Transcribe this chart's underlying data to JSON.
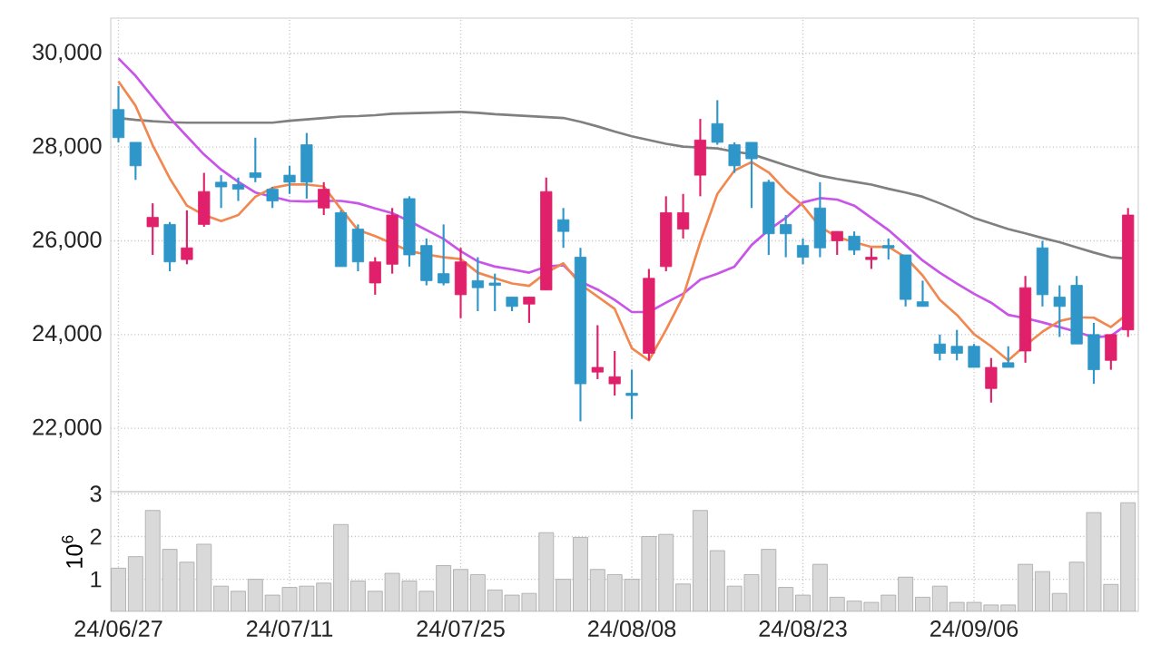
{
  "chart_data": [
    {
      "type": "candlestick",
      "categories": [
        null,
        null,
        null,
        null,
        null,
        null,
        null,
        null,
        null,
        null,
        null,
        null,
        null,
        null,
        null,
        null,
        null,
        null,
        null,
        null,
        null,
        null,
        null,
        null,
        null,
        null,
        null,
        null,
        null,
        null,
        null,
        null,
        null,
        null,
        null,
        null,
        null,
        null,
        null,
        null,
        null,
        null,
        null,
        null,
        null,
        null,
        null,
        null,
        null,
        null,
        null,
        null,
        null,
        null,
        null,
        null,
        null,
        null,
        null,
        null
      ],
      "ohlc": [
        [
          28800,
          29300,
          28100,
          28200
        ],
        [
          28100,
          28100,
          27300,
          27600
        ],
        [
          26300,
          26800,
          25700,
          26500
        ],
        [
          26350,
          26400,
          25350,
          25550
        ],
        [
          25600,
          26650,
          25500,
          25850
        ],
        [
          26350,
          27450,
          26300,
          27050
        ],
        [
          27250,
          27400,
          26700,
          27150
        ],
        [
          27200,
          27350,
          26850,
          27100
        ],
        [
          27450,
          28200,
          27250,
          27350
        ],
        [
          27100,
          27150,
          26700,
          26850
        ],
        [
          27400,
          27600,
          27000,
          27250
        ],
        [
          28050,
          28300,
          26900,
          27250
        ],
        [
          26700,
          27250,
          26550,
          27100
        ],
        [
          26600,
          26650,
          25450,
          25450
        ],
        [
          26250,
          26350,
          25350,
          25550
        ],
        [
          25100,
          25650,
          24850,
          25550
        ],
        [
          25500,
          26700,
          25300,
          26550
        ],
        [
          26900,
          26950,
          25450,
          25700
        ],
        [
          25900,
          26050,
          25050,
          25150
        ],
        [
          25300,
          26350,
          25050,
          25100
        ],
        [
          24850,
          25850,
          24350,
          25550
        ],
        [
          25150,
          25650,
          24500,
          25000
        ],
        [
          25100,
          25300,
          24500,
          25050
        ],
        [
          24800,
          24800,
          24500,
          24600
        ],
        [
          24650,
          24800,
          24250,
          24800
        ],
        [
          24950,
          27350,
          24950,
          27050
        ],
        [
          26450,
          26700,
          25850,
          26200
        ],
        [
          25650,
          25850,
          22150,
          22950
        ],
        [
          23200,
          24200,
          23050,
          23300
        ],
        [
          22950,
          23650,
          22700,
          23100
        ],
        [
          22750,
          23250,
          22200,
          22700
        ],
        [
          23600,
          25400,
          23450,
          25200
        ],
        [
          25450,
          26950,
          25350,
          26600
        ],
        [
          26250,
          27000,
          26050,
          26600
        ],
        [
          27400,
          28600,
          26950,
          28150
        ],
        [
          28500,
          29000,
          28050,
          28100
        ],
        [
          28050,
          28100,
          27450,
          27600
        ],
        [
          28100,
          28100,
          26700,
          27750
        ],
        [
          27250,
          27300,
          25700,
          26150
        ],
        [
          26350,
          26550,
          25650,
          26150
        ],
        [
          25900,
          26050,
          25500,
          25650
        ],
        [
          26700,
          27250,
          25650,
          25850
        ],
        [
          26000,
          26200,
          25700,
          26200
        ],
        [
          26100,
          26200,
          25700,
          25800
        ],
        [
          25600,
          25850,
          25400,
          25650
        ],
        [
          25900,
          26050,
          25600,
          25850
        ],
        [
          25700,
          25700,
          24600,
          24750
        ],
        [
          24700,
          25150,
          24600,
          24600
        ],
        [
          23800,
          24000,
          23450,
          23600
        ],
        [
          23750,
          24100,
          23450,
          23600
        ],
        [
          23750,
          23800,
          23300,
          23300
        ],
        [
          22850,
          23500,
          22550,
          23300
        ],
        [
          23400,
          23750,
          23300,
          23300
        ],
        [
          23650,
          25250,
          23400,
          25000
        ],
        [
          25850,
          26000,
          24600,
          24850
        ],
        [
          24800,
          25050,
          23950,
          24600
        ],
        [
          25050,
          25250,
          23800,
          23800
        ],
        [
          24000,
          24250,
          22950,
          23250
        ],
        [
          23450,
          24000,
          23250,
          24000
        ],
        [
          24100,
          26700,
          23950,
          26550
        ]
      ],
      "colors": [
        "#2e96c8",
        "#2e96c8",
        "#e0206a",
        "#2e96c8",
        "#e0206a",
        "#e0206a",
        "#2e96c8",
        "#2e96c8",
        "#2e96c8",
        "#2e96c8",
        "#2e96c8",
        "#2e96c8",
        "#e0206a",
        "#2e96c8",
        "#2e96c8",
        "#e0206a",
        "#e0206a",
        "#2e96c8",
        "#2e96c8",
        "#2e96c8",
        "#e0206a",
        "#2e96c8",
        "#2e96c8",
        "#2e96c8",
        "#e0206a",
        "#e0206a",
        "#2e96c8",
        "#2e96c8",
        "#e0206a",
        "#e0206a",
        "#2e96c8",
        "#e0206a",
        "#e0206a",
        "#e0206a",
        "#e0206a",
        "#2e96c8",
        "#2e96c8",
        "#2e96c8",
        "#2e96c8",
        "#2e96c8",
        "#2e96c8",
        "#2e96c8",
        "#e0206a",
        "#2e96c8",
        "#e0206a",
        "#2e96c8",
        "#2e96c8",
        "#2e96c8",
        "#2e96c8",
        "#2e96c8",
        "#2e96c8",
        "#e0206a",
        "#2e96c8",
        "#e0206a",
        "#2e96c8",
        "#2e96c8",
        "#2e96c8",
        "#2e96c8",
        "#e0206a",
        "#e0206a"
      ],
      "series": [
        {
          "type": "line",
          "color": "#808080",
          "values": [
            28620,
            28580,
            28550,
            28530,
            28520,
            28520,
            28520,
            28520,
            28520,
            28520,
            28560,
            28590,
            28620,
            28650,
            28660,
            28680,
            28710,
            28720,
            28730,
            28740,
            28750,
            28730,
            28700,
            28680,
            28660,
            28640,
            28620,
            28540,
            28440,
            28330,
            28230,
            28150,
            28070,
            28010,
            27990,
            27970,
            27900,
            27850,
            27730,
            27610,
            27500,
            27390,
            27320,
            27260,
            27200,
            27110,
            27030,
            26940,
            26800,
            26650,
            26490,
            26370,
            26250,
            26160,
            26060,
            25970,
            25860,
            25750,
            25650,
            25620
          ]
        },
        {
          "type": "line",
          "color": "#c855e8",
          "values": [
            29890,
            29520,
            29070,
            28620,
            28230,
            27840,
            27520,
            27260,
            27030,
            26940,
            26850,
            26840,
            26850,
            26850,
            26800,
            26690,
            26590,
            26420,
            26230,
            26040,
            25780,
            25560,
            25450,
            25390,
            25320,
            25450,
            25480,
            25130,
            24960,
            24740,
            24480,
            24480,
            24680,
            24870,
            25170,
            25300,
            25450,
            25910,
            26230,
            26490,
            26820,
            26910,
            26880,
            26750,
            26490,
            26230,
            25910,
            25580,
            25320,
            25090,
            24870,
            24680,
            24420,
            24350,
            24260,
            24160,
            24060,
            23940,
            23970,
            24230
          ]
        },
        {
          "type": "line",
          "color": "#f08850",
          "values": [
            29400,
            28880,
            28040,
            27330,
            26750,
            26550,
            26420,
            26550,
            26940,
            27130,
            27200,
            27200,
            27160,
            26680,
            26230,
            26100,
            25940,
            25780,
            25710,
            25650,
            25610,
            25320,
            25200,
            25090,
            25040,
            25320,
            25520,
            25070,
            24810,
            24550,
            23710,
            23450,
            24100,
            24810,
            25970,
            27000,
            27500,
            27680,
            27460,
            27070,
            26750,
            26300,
            26080,
            25970,
            25870,
            25870,
            25650,
            25260,
            24740,
            24420,
            24010,
            23750,
            23450,
            23770,
            24060,
            24290,
            24370,
            24360,
            24160,
            24450
          ]
        }
      ],
      "ylim": [
        20650,
        30750
      ],
      "yticks": [
        {
          "value": 22000,
          "label": "22,000"
        },
        {
          "value": 24000,
          "label": "24,000"
        },
        {
          "value": 26000,
          "label": "26,000"
        },
        {
          "value": 28000,
          "label": "28,000"
        },
        {
          "value": 30000,
          "label": "30,000"
        }
      ],
      "grid": true,
      "tick_labels": "y"
    },
    {
      "type": "bar",
      "categories": [
        "24/06/27",
        null,
        null,
        null,
        null,
        null,
        null,
        null,
        null,
        null,
        "24/07/11",
        null,
        null,
        null,
        null,
        null,
        null,
        null,
        null,
        null,
        "24/07/25",
        null,
        null,
        null,
        null,
        null,
        null,
        null,
        null,
        null,
        "24/08/08",
        null,
        null,
        null,
        null,
        null,
        null,
        null,
        null,
        null,
        "24/08/23",
        null,
        null,
        null,
        null,
        null,
        null,
        null,
        null,
        null,
        "24/09/06",
        null,
        null,
        null,
        null,
        null,
        null,
        null,
        null,
        null
      ],
      "values": [
        1.26,
        1.53,
        2.61,
        1.7,
        1.4,
        1.82,
        0.84,
        0.72,
        1.0,
        0.63,
        0.81,
        0.84,
        0.91,
        2.28,
        0.96,
        0.72,
        1.14,
        0.96,
        0.72,
        1.32,
        1.23,
        1.11,
        0.75,
        0.63,
        0.67,
        2.09,
        1.0,
        1.98,
        1.23,
        1.11,
        1.0,
        2.0,
        2.05,
        0.89,
        2.61,
        1.67,
        0.84,
        1.11,
        1.7,
        0.81,
        0.63,
        1.35,
        0.58,
        0.49,
        0.46,
        0.63,
        1.05,
        0.58,
        0.84,
        0.46,
        0.46,
        0.4,
        0.4,
        1.35,
        1.18,
        0.67,
        1.4,
        2.56,
        0.88,
        2.79
      ],
      "color": "#d9d9d9",
      "ylabel": "10$^{6}$",
      "ylim": [
        0.25,
        3.05
      ],
      "yticks": [
        1,
        2,
        3
      ],
      "grid": true
    }
  ]
}
